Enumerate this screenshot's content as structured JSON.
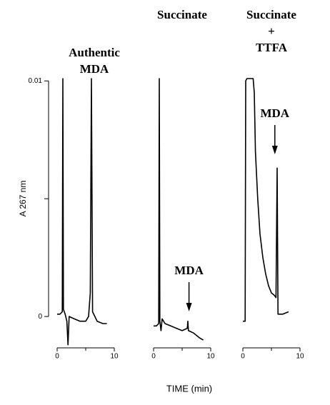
{
  "chart_data": [
    {
      "type": "line",
      "title_lines": [
        "Authentic",
        "MDA"
      ],
      "color": "#000000",
      "ylabel": "A  267 nm",
      "x": [
        0,
        0.5,
        0.9,
        1.0,
        1.1,
        1.4,
        1.7,
        1.9,
        2.1,
        3,
        4,
        5,
        5.5,
        5.8,
        6.0,
        6.2,
        7,
        8,
        8.7
      ],
      "values": [
        0.0001,
        0.0001,
        0.0002,
        0.0101,
        0.0003,
        0.0001,
        -0.0002,
        -0.0012,
        0.0,
        -0.0001,
        -0.0002,
        -0.0002,
        0.0,
        0.001,
        0.0101,
        0.0002,
        -0.0002,
        -0.0003,
        -0.0003
      ],
      "xlim": [
        0,
        10
      ],
      "xticks": [
        0,
        10
      ],
      "minor_xticks": [
        5
      ],
      "ylim": [
        -0.0013,
        0.0101
      ],
      "yticks": [
        0,
        0.01
      ],
      "minor_yticks": [
        0.005
      ]
    },
    {
      "type": "line",
      "title_lines": [
        "Succinate"
      ],
      "color": "#000000",
      "xlabel": "TIME   (min)",
      "x": [
        0,
        0.5,
        0.9,
        1.0,
        1.1,
        1.3,
        1.5,
        2,
        3,
        4,
        5,
        5.9,
        6.0,
        6.1,
        7,
        8,
        8.7
      ],
      "values": [
        -0.0004,
        -0.0004,
        -0.0003,
        0.0101,
        -0.0002,
        -0.0006,
        -0.0001,
        -0.0003,
        -0.0004,
        -0.0005,
        -0.0006,
        -0.0005,
        -0.0002,
        -0.0006,
        -0.0007,
        -0.0009,
        -0.001
      ],
      "xlim": [
        0,
        10
      ],
      "xticks": [
        0,
        10
      ],
      "minor_xticks": [
        5
      ],
      "ylim": [
        -0.0013,
        0.0101
      ],
      "annotations": [
        {
          "text": "MDA",
          "x": 6.2
        }
      ]
    },
    {
      "type": "line",
      "title_lines": [
        "Succinate",
        "+",
        "TTFA"
      ],
      "color": "#000000",
      "x": [
        0,
        0.4,
        0.5,
        0.7,
        1.8,
        2.0,
        2.2,
        2.6,
        3,
        3.5,
        4,
        4.5,
        5,
        5.5,
        5.8,
        6.0,
        6.15,
        7,
        8
      ],
      "values": [
        -0.0002,
        -0.0002,
        0.01,
        0.0101,
        0.0101,
        0.0095,
        0.007,
        0.005,
        0.0035,
        0.0025,
        0.0018,
        0.0013,
        0.001,
        0.0009,
        0.0008,
        0.0063,
        0.0001,
        0.0001,
        0.0002
      ],
      "xlim": [
        0,
        10
      ],
      "xticks": [
        0,
        10
      ],
      "minor_xticks": [
        5
      ],
      "ylim": [
        -0.0013,
        0.0101
      ],
      "annotations": [
        {
          "text": "MDA",
          "x": 5.6
        }
      ]
    }
  ]
}
